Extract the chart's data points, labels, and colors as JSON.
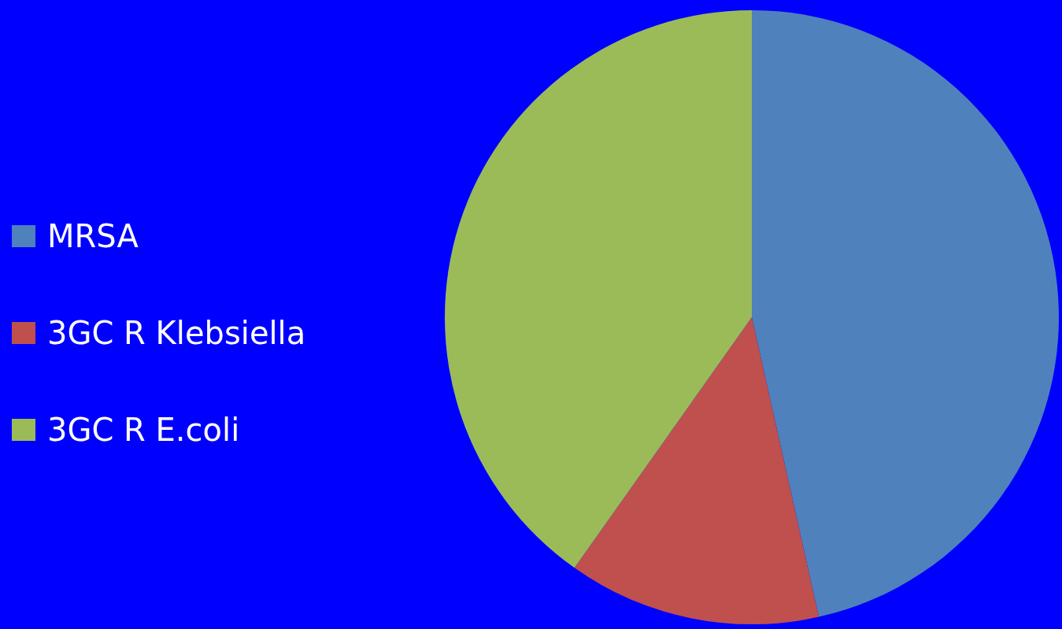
{
  "chart_data": {
    "type": "pie",
    "categories": [
      "MRSA",
      "3GC R Klebsiella",
      "3GC R E.coli"
    ],
    "values": [
      46.5,
      13.3,
      40.2
    ],
    "colors": [
      "#4f81bd",
      "#c0504d",
      "#9bbb59"
    ],
    "legend": "left"
  }
}
